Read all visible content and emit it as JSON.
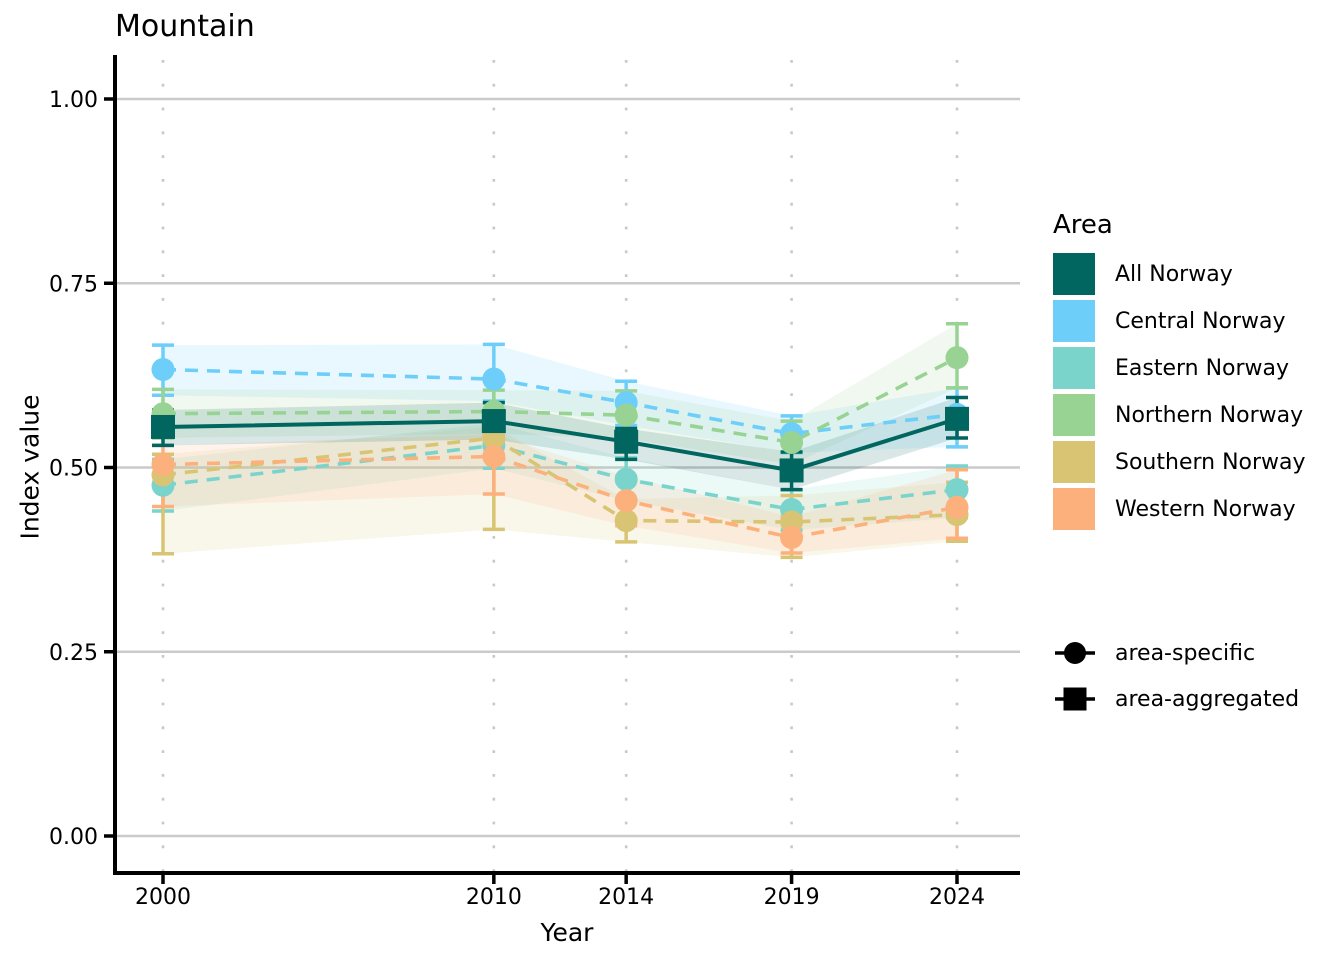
{
  "title": "Mountain",
  "axes": {
    "x_label": "Year",
    "y_label": "Index value",
    "x_ticks": [
      "2000",
      "2010",
      "2014",
      "2019",
      "2024"
    ],
    "y_ticks": [
      "0.00",
      "0.25",
      "0.50",
      "0.75",
      "1.00"
    ]
  },
  "legend": {
    "title": "Area",
    "areas": [
      {
        "label": "All Norway",
        "color": "#00665f"
      },
      {
        "label": "Central Norway",
        "color": "#6dcef9"
      },
      {
        "label": "Eastern Norway",
        "color": "#7ad4cb"
      },
      {
        "label": "Northern Norway",
        "color": "#98d393"
      },
      {
        "label": "Southern Norway",
        "color": "#d9c474"
      },
      {
        "label": "Western Norway",
        "color": "#fcb17d"
      }
    ],
    "markers": [
      {
        "label": "area-specific",
        "shape": "circle"
      },
      {
        "label": "area-aggregated",
        "shape": "square"
      }
    ]
  },
  "chart_data": {
    "type": "line",
    "title": "Mountain",
    "xlabel": "Year",
    "ylabel": "Index value",
    "x": [
      2000,
      2010,
      2014,
      2019,
      2024
    ],
    "ylim": [
      0.0,
      1.0
    ],
    "y_gridlines": [
      0.0,
      0.25,
      0.5,
      0.75,
      1.0
    ],
    "grid": "horizontal solid gray, vertical dotted at year ticks",
    "legend_position": "right",
    "ribbon_opacity": 0.15,
    "series": [
      {
        "name": "Central Norway",
        "color": "#6dcef9",
        "marker": "circle",
        "line_style": "dashed",
        "values": [
          0.633,
          0.62,
          0.588,
          0.546,
          0.572
        ],
        "lower": [
          0.598,
          0.59,
          0.557,
          0.52,
          0.528
        ],
        "upper": [
          0.666,
          0.667,
          0.617,
          0.57,
          0.608
        ]
      },
      {
        "name": "Eastern Norway",
        "color": "#7ad4cb",
        "marker": "circle",
        "line_style": "dashed",
        "values": [
          0.476,
          0.53,
          0.484,
          0.443,
          0.47
        ],
        "lower": [
          0.441,
          0.499,
          0.455,
          0.415,
          0.432
        ],
        "upper": [
          0.511,
          0.56,
          0.513,
          0.47,
          0.502
        ]
      },
      {
        "name": "Northern Norway",
        "color": "#98d393",
        "marker": "circle",
        "line_style": "dashed",
        "values": [
          0.573,
          0.576,
          0.571,
          0.534,
          0.649
        ],
        "lower": [
          0.54,
          0.546,
          0.539,
          0.504,
          0.608
        ],
        "upper": [
          0.606,
          0.605,
          0.604,
          0.563,
          0.695
        ]
      },
      {
        "name": "Southern Norway",
        "color": "#d9c474",
        "marker": "circle",
        "line_style": "dashed",
        "values": [
          0.49,
          0.54,
          0.428,
          0.426,
          0.436
        ],
        "lower": [
          0.383,
          0.416,
          0.399,
          0.378,
          0.4
        ],
        "upper": [
          0.518,
          0.555,
          0.457,
          0.462,
          0.48
        ]
      },
      {
        "name": "Western Norway",
        "color": "#fcb17d",
        "marker": "circle",
        "line_style": "dashed",
        "values": [
          0.504,
          0.515,
          0.455,
          0.405,
          0.446
        ],
        "lower": [
          0.447,
          0.464,
          0.421,
          0.384,
          0.404
        ],
        "upper": [
          0.53,
          0.545,
          0.488,
          0.433,
          0.497
        ]
      },
      {
        "name": "All Norway",
        "color": "#00665f",
        "marker": "square",
        "line_style": "solid",
        "values": [
          0.555,
          0.563,
          0.535,
          0.496,
          0.566
        ],
        "lower": [
          0.53,
          0.538,
          0.511,
          0.47,
          0.54
        ],
        "upper": [
          0.578,
          0.588,
          0.553,
          0.521,
          0.595
        ]
      }
    ]
  }
}
